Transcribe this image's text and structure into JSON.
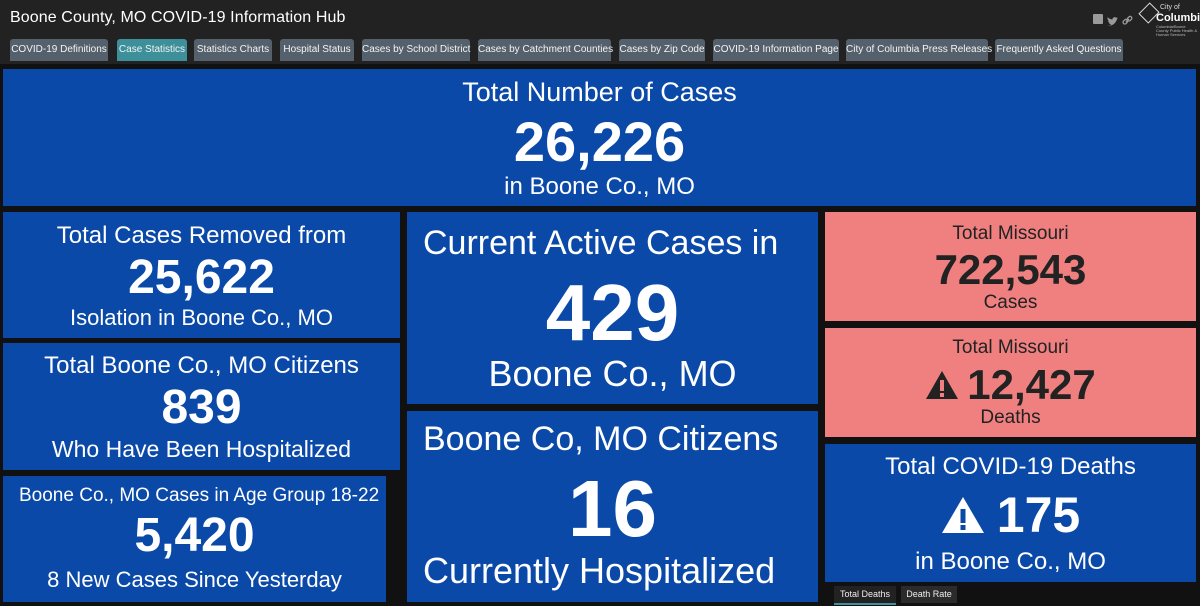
{
  "header": {
    "title": "Boone County, MO COVID-19 Information Hub",
    "logo": {
      "city_prefix": "City of",
      "name": "Columbia",
      "sub": "Columbia/Boone County Public Health & Human Services"
    }
  },
  "tabs": [
    {
      "label": "COVID-19 Definitions"
    },
    {
      "label": "Case Statistics",
      "active": true
    },
    {
      "label": "Statistics Charts"
    },
    {
      "label": "Hospital Status"
    },
    {
      "label": "Cases by School District"
    },
    {
      "label": "Cases by Catchment Counties"
    },
    {
      "label": "Cases by Zip Code"
    },
    {
      "label": "COVID-19 Information Page"
    },
    {
      "label": "City of Columbia Press Releases"
    },
    {
      "label": "Frequently Asked Questions"
    }
  ],
  "panels": {
    "total_cases": {
      "top": "Total Number of Cases",
      "value": "26,226",
      "bottom": "in Boone Co., MO"
    },
    "removed": {
      "top": "Total Cases Removed from",
      "value": "25,622",
      "bottom": "Isolation in Boone Co., MO"
    },
    "hospitalized_total": {
      "top": "Total Boone Co., MO Citizens",
      "value": "839",
      "bottom": "Who Have Been Hospitalized"
    },
    "age_group": {
      "top": "Boone Co., MO Cases in Age Group 18-22",
      "value": "5,420",
      "bottom": "8 New Cases Since Yesterday"
    },
    "active": {
      "top": "Current Active Cases in",
      "value": "429",
      "bottom": "Boone Co., MO"
    },
    "currently_hosp": {
      "top": "Boone Co, MO Citizens",
      "value": "16",
      "bottom": "Currently Hospitalized"
    },
    "mo_cases": {
      "top": "Total Missouri",
      "value": "722,543",
      "bottom": "Cases"
    },
    "mo_deaths": {
      "top": "Total Missouri",
      "value": "12,427",
      "bottom": "Deaths"
    },
    "deaths": {
      "top": "Total COVID-19 Deaths",
      "value": "175",
      "bottom": "in Boone Co., MO"
    }
  },
  "bottom_tabs": [
    {
      "label": "Total Deaths",
      "active": true
    },
    {
      "label": "Death Rate"
    }
  ],
  "colors": {
    "panel_blue": "#0a49a8",
    "panel_pink": "#f08080",
    "tab_active": "#3d8f99",
    "tab": "#54606b",
    "background": "#111111"
  },
  "icons": [
    "facebook-icon",
    "twitter-icon",
    "link-icon",
    "warning-icon"
  ]
}
